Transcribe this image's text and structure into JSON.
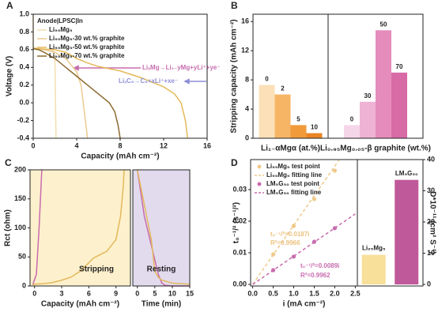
{
  "chart_data": [
    {
      "type": "line",
      "panel": "A",
      "xlabel": "Capacity (mAh cm⁻²)",
      "ylabel": "Voltage (V)",
      "xlim": [
        0,
        16
      ],
      "xticks": [
        0,
        4,
        8,
        12,
        16
      ],
      "ylim": [
        -0.4,
        1.0
      ],
      "yticks": [
        -0.4,
        -0.2,
        {
          "value": 0,
          "label": "0.0"
        },
        0.2,
        0.4,
        0.6,
        0.8,
        {
          "value": 1,
          "label": "1.0"
        }
      ],
      "legend": "upper left",
      "legend_title": "Anode|LPSC|In",
      "series": [
        {
          "name": "Li₉₅Mg₅",
          "color": "#f3dfae",
          "x": [
            0,
            0.02,
            0.1,
            1.8,
            2.0,
            2.05,
            2.1
          ],
          "values": [
            1.0,
            0.62,
            0.61,
            0.6,
            0.5,
            0.0,
            -0.4
          ]
        },
        {
          "name": "Li₉₅Mg₅-30 wt.% graphite",
          "color": "#ebcb90",
          "x": [
            0,
            0.1,
            1,
            2,
            3,
            4,
            4.4,
            4.6,
            4.8,
            5.0
          ],
          "values": [
            0.62,
            0.61,
            0.6,
            0.57,
            0.5,
            0.35,
            0.2,
            0.0,
            -0.2,
            -0.4
          ]
        },
        {
          "name": "Li₉₅Mg₅-50 wt.% graphite",
          "color": "#e5b95a",
          "x": [
            0,
            0.5,
            2,
            3,
            4,
            5,
            6,
            8,
            10,
            12,
            13,
            13.6,
            14,
            14.2
          ],
          "values": [
            0.62,
            0.61,
            0.6,
            0.57,
            0.5,
            0.45,
            0.41,
            0.36,
            0.28,
            0.18,
            0.1,
            0.0,
            -0.2,
            -0.4
          ]
        },
        {
          "name": "Li₉₅Mg₅-70 wt.% graphite",
          "color": "#8b6a2f",
          "x": [
            0,
            0.5,
            1,
            2,
            3,
            4,
            5,
            6,
            7,
            7.5,
            7.8,
            8
          ],
          "values": [
            0.61,
            0.6,
            0.57,
            0.5,
            0.4,
            0.3,
            0.2,
            0.1,
            0.0,
            -0.1,
            -0.25,
            -0.4
          ]
        }
      ],
      "annotations": [
        {
          "text": "LiₓMg→Li₁₋yMg+yLi⁺+ye⁻",
          "color": "#c86cae"
        },
        {
          "text": "LiₓC₆→C₆+xLi⁺+xe⁻",
          "color": "#8e8fd6"
        }
      ]
    },
    {
      "type": "bar",
      "panel": "B",
      "ylabel": "Stripping capacity (mAh cm⁻²)",
      "ylim": [
        0,
        17
      ],
      "yticks": [
        0,
        4,
        8,
        12,
        16
      ],
      "groups": [
        {
          "label": "Li₁₋αMgα (at.%)",
          "categories": [
            "0",
            "2",
            "5",
            "10"
          ],
          "values": [
            7.3,
            6.0,
            1.8,
            0.7
          ],
          "colors": [
            "#fbe0b8",
            "#f6b565",
            "#f09a3a",
            "#e98525"
          ]
        },
        {
          "label": "Li₀.₉₅Mg₀.₀₅-β graphite (wt.%)",
          "categories": [
            "0",
            "30",
            "50",
            "70"
          ],
          "values": [
            1.8,
            5.0,
            14.8,
            9.0
          ],
          "colors": [
            "#f5d6e8",
            "#eeb2d4",
            "#e58cbc",
            "#d86aa6"
          ]
        }
      ]
    },
    {
      "type": "line",
      "panel": "C",
      "ylabel": "Rct (ohm)",
      "xlabel": "Capacity (mAh cm⁻²)",
      "annotation": "Stripping",
      "xlim": [
        -0.5,
        10.6
      ],
      "xticks": [
        0,
        3,
        6,
        9
      ],
      "ylim": [
        0,
        200
      ],
      "yticks": [
        0,
        50,
        100,
        150,
        200
      ],
      "background": "#fdf0cc",
      "legend": "upper right",
      "series": [
        {
          "name": "Li₉₅Mg₅",
          "color": "#c86cae",
          "x": [
            -0.2,
            0.2,
            0.5,
            0.8
          ],
          "values": [
            2,
            20,
            100,
            200
          ]
        },
        {
          "name": "LM₅G₅₀",
          "color": "#e3b95c",
          "x": [
            -0.2,
            0,
            1,
            2,
            3,
            4,
            5,
            6,
            6.5,
            7,
            8,
            9,
            9.5,
            9.8,
            9.9
          ],
          "values": [
            2,
            3,
            4,
            6,
            10,
            15,
            25,
            40,
            48,
            52,
            60,
            80,
            120,
            170,
            200
          ]
        }
      ]
    },
    {
      "type": "line",
      "xlabel": "Time (min)",
      "annotation": "Resting",
      "xlim": [
        -1.3,
        15
      ],
      "xticks": [
        0,
        5,
        10,
        15
      ],
      "ylim": [
        0,
        200
      ],
      "background": "#e2dbee",
      "series": [
        {
          "color": "#c86cae",
          "x": [
            0,
            1,
            2,
            3,
            4,
            5,
            6,
            7,
            8,
            10,
            15
          ],
          "values": [
            200,
            160,
            120,
            95,
            70,
            45,
            20,
            5,
            1,
            0,
            0
          ]
        },
        {
          "color": "#e3b95c",
          "x": [
            0,
            1,
            2,
            3,
            4,
            5,
            6,
            7,
            10,
            15
          ],
          "values": [
            200,
            170,
            140,
            110,
            80,
            25,
            15,
            10,
            5,
            3
          ]
        }
      ]
    },
    {
      "type": "scatter",
      "panel": "D",
      "xlabel": "i (mA cm⁻²)",
      "ylabel": "t₀⁻¹/² (s⁻¹/²)",
      "xlim": [
        -0.05,
        2.55
      ],
      "xticks": [
        {
          "value": 0,
          "label": "0.0"
        },
        0.5,
        {
          "value": 1,
          "label": "1.0"
        },
        1.5,
        {
          "value": 2,
          "label": "2.0"
        },
        2.5
      ],
      "ylim": [
        -0.0005,
        0.0395
      ],
      "yticks": [
        {
          "value": 0,
          "label": "0.00"
        },
        0.01,
        0.02,
        0.03
      ],
      "legend": "upper left",
      "series": [
        {
          "name": "Li₉₅Mg₅ test point",
          "color": "#f0c98a",
          "style": "points",
          "x": [
            0.5,
            1,
            1.5,
            2
          ],
          "values": [
            0.0095,
            0.0185,
            0.027,
            0.036
          ]
        },
        {
          "name": "Li₉₅Mg₅ fitting line",
          "color": "#f0c98a",
          "style": "dashed",
          "x": [
            0,
            2.1
          ],
          "values": [
            0,
            0.0393
          ]
        },
        {
          "name": "LM₅G₅₀ test point",
          "color": "#c86cae",
          "style": "points",
          "x": [
            0.5,
            1,
            1.5,
            2
          ],
          "values": [
            0.0045,
            0.0088,
            0.0135,
            0.0178
          ]
        },
        {
          "name": "LM₅G₅₀ fitting line",
          "color": "#c86cae",
          "style": "dashed",
          "x": [
            0,
            2.5
          ],
          "values": [
            0,
            0.0223
          ]
        }
      ],
      "annotations": [
        {
          "text": "t₀⁻¹/²=0.0187i",
          "color": "#ebc27e"
        },
        {
          "text": "R²=0.9966",
          "color": "#ebc27e"
        },
        {
          "text": "t₀⁻¹/²=0.0089i",
          "color": "#c86cae"
        },
        {
          "text": "R²=0.9962",
          "color": "#c86cae"
        }
      ]
    },
    {
      "type": "bar",
      "ylabel": "D*10⁻¹¹ (cm² S⁻¹)",
      "yaxis": "right",
      "ylim": [
        -0.5,
        40
      ],
      "yticks": [
        0,
        10,
        20,
        30,
        40
      ],
      "categories": [
        "Li₉₅Mg₅",
        "LM₅G₅₀"
      ],
      "values": [
        9.5,
        33.5
      ],
      "colors": [
        "#f8df9a",
        "#c0599a"
      ]
    }
  ]
}
